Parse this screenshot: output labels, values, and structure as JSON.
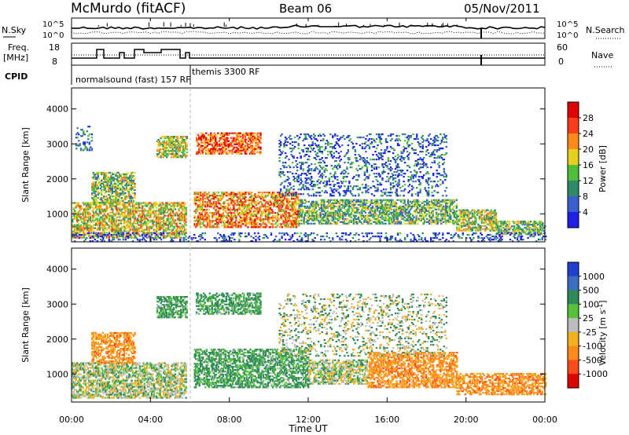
{
  "header": {
    "station": "McMurdo (fitACF)",
    "beam": "Beam 06",
    "date": "05/Nov/2011"
  },
  "panels": {
    "nsky_label": "N.Sky",
    "nsky_ticks": [
      "10^5",
      "10^0"
    ],
    "nsearch_label": "N.Search",
    "nsearch_ticks": [
      "10^5",
      "10^0"
    ],
    "freq_label_top": "Freq.",
    "freq_label_bottom": "[MHz]",
    "freq_ticks": [
      "18",
      "8"
    ],
    "nave_label": "Nave",
    "nave_ticks": [
      "60",
      "0"
    ],
    "cpid_label": "CPID",
    "cpid_text_1": "normalsound (fast) 157 RF",
    "cpid_text_2": "themis 3300 RF"
  },
  "chart_data": [
    {
      "type": "heatmap",
      "name": "power",
      "ylabel": "Slant Range [km]",
      "yticks": [
        "1000",
        "2000",
        "3000",
        "4000"
      ],
      "ylim": [
        200,
        4600
      ],
      "xlim_hours": [
        0,
        24
      ],
      "colorbar_label": "Power [dB]",
      "colorbar_ticks": [
        "4",
        "8",
        "12",
        "16",
        "20",
        "24",
        "28"
      ],
      "colorbar_colors": [
        "#1f1fe8",
        "#3a5fd0",
        "#2e8b6a",
        "#4fbf3a",
        "#e6d21e",
        "#ff8a1a",
        "#ff3d1a",
        "#e00000"
      ],
      "scatter_regions": [
        {
          "t0": 0.0,
          "t1": 5.8,
          "r0": 300,
          "r1": 1300,
          "level": 0.55
        },
        {
          "t0": 1.0,
          "t1": 3.2,
          "r0": 1300,
          "r1": 2200,
          "level": 0.45
        },
        {
          "t0": 0.2,
          "t1": 1.0,
          "r0": 2800,
          "r1": 3500,
          "level": 0.25
        },
        {
          "t0": 4.3,
          "t1": 5.8,
          "r0": 2600,
          "r1": 3200,
          "level": 0.5
        },
        {
          "t0": 6.3,
          "t1": 9.6,
          "r0": 2700,
          "r1": 3300,
          "level": 0.8
        },
        {
          "t0": 6.2,
          "t1": 11.5,
          "r0": 600,
          "r1": 1600,
          "level": 0.7
        },
        {
          "t0": 11.5,
          "t1": 19.5,
          "r0": 700,
          "r1": 1400,
          "level": 0.4
        },
        {
          "t0": 19.5,
          "t1": 21.5,
          "r0": 500,
          "r1": 1100,
          "level": 0.5
        },
        {
          "t0": 21.5,
          "t1": 24.0,
          "r0": 400,
          "r1": 800,
          "level": 0.45
        },
        {
          "t0": 10.5,
          "t1": 19.0,
          "r0": 1500,
          "r1": 3300,
          "level": 0.2
        },
        {
          "t0": 0.0,
          "t1": 24.0,
          "r0": 200,
          "r1": 450,
          "level": 0.15
        }
      ]
    },
    {
      "type": "heatmap",
      "name": "velocity",
      "ylabel": "Slant Range [km]",
      "yticks": [
        "1000",
        "2000",
        "3000",
        "4000"
      ],
      "ylim": [
        200,
        4600
      ],
      "xlim_hours": [
        0,
        24
      ],
      "xticks": [
        "00:00",
        "04:00",
        "08:00",
        "12:00",
        "16:00",
        "20:00",
        "00:00"
      ],
      "xlabel": "Time UT",
      "colorbar_label": "Velocity [m s^-1]",
      "colorbar_ticks": [
        "1000",
        "500",
        "100",
        "25",
        "-25",
        "-100",
        "-500",
        "-1000"
      ],
      "colorbar_colors": [
        "#1f3fd0",
        "#3a6fc0",
        "#2e8b57",
        "#55c23a",
        "#bdbdbd",
        "#f2b01e",
        "#ff8a1a",
        "#ff4a1a",
        "#e00000"
      ],
      "scatter_regions": [
        {
          "t0": 0.0,
          "t1": 5.8,
          "r0": 300,
          "r1": 1300,
          "vel": "mix"
        },
        {
          "t0": 1.0,
          "t1": 3.2,
          "r0": 1300,
          "r1": 2200,
          "vel": "neg"
        },
        {
          "t0": 4.3,
          "t1": 5.8,
          "r0": 2600,
          "r1": 3200,
          "vel": "pos"
        },
        {
          "t0": 6.3,
          "t1": 9.6,
          "r0": 2700,
          "r1": 3300,
          "vel": "pos"
        },
        {
          "t0": 6.2,
          "t1": 12.0,
          "r0": 600,
          "r1": 1700,
          "vel": "pos"
        },
        {
          "t0": 12.0,
          "t1": 15.0,
          "r0": 700,
          "r1": 1400,
          "vel": "mix"
        },
        {
          "t0": 15.0,
          "t1": 19.5,
          "r0": 600,
          "r1": 1600,
          "vel": "neg"
        },
        {
          "t0": 19.5,
          "t1": 24.0,
          "r0": 400,
          "r1": 1000,
          "vel": "neg"
        },
        {
          "t0": 10.5,
          "t1": 19.0,
          "r0": 1500,
          "r1": 3300,
          "vel": "mix_sparse"
        }
      ]
    }
  ]
}
